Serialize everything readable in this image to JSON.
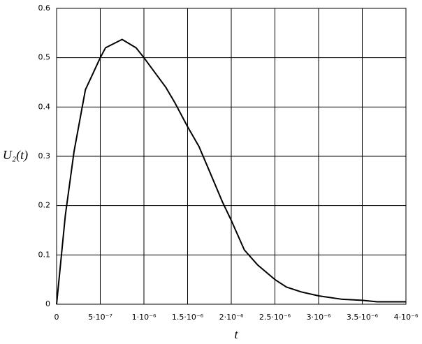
{
  "chart_data": {
    "type": "line",
    "xlabel": "t",
    "ylabel": "U₂(t)",
    "series": [
      {
        "name": "U2",
        "color": "#000000",
        "x": [
          0,
          1e-07,
          2e-07,
          3.3e-07,
          5e-07,
          5.6e-07,
          7.5e-07,
          9.1e-07,
          1e-06,
          1.25e-06,
          1.35e-06,
          1.5e-06,
          1.63e-06,
          1.75e-06,
          1.9e-06,
          2e-06,
          2.15e-06,
          2.3e-06,
          2.5e-06,
          2.63e-06,
          2.8e-06,
          3e-06,
          3.27e-06,
          3.5e-06,
          3.67e-06,
          4e-06
        ],
        "values": [
          0,
          0.18,
          0.31,
          0.435,
          0.5,
          0.52,
          0.537,
          0.52,
          0.5,
          0.44,
          0.41,
          0.36,
          0.32,
          0.27,
          0.207,
          0.17,
          0.11,
          0.08,
          0.05,
          0.035,
          0.025,
          0.017,
          0.01,
          0.008,
          0.005,
          0.005
        ]
      }
    ],
    "xlim": [
      0,
      4e-06
    ],
    "ylim": [
      0,
      0.6
    ],
    "xticks": [
      0,
      {
        "value": 5e-07,
        "label": "5·10⁻⁷"
      },
      {
        "value": 1e-06,
        "label": "1·10⁻⁶"
      },
      {
        "value": 1.5e-06,
        "label": "1.5·10⁻⁶"
      },
      {
        "value": 2e-06,
        "label": "2·10⁻⁶"
      },
      {
        "value": 2.5e-06,
        "label": "2.5·10⁻⁶"
      },
      {
        "value": 3e-06,
        "label": "3·10⁻⁶"
      },
      {
        "value": 3.5e-06,
        "label": "3.5·10⁻⁶"
      },
      {
        "value": 4e-06,
        "label": "4·10⁻⁶"
      }
    ],
    "yticks": [
      0,
      0.1,
      0.2,
      0.3,
      0.4,
      0.5,
      0.6
    ],
    "grid": true
  }
}
